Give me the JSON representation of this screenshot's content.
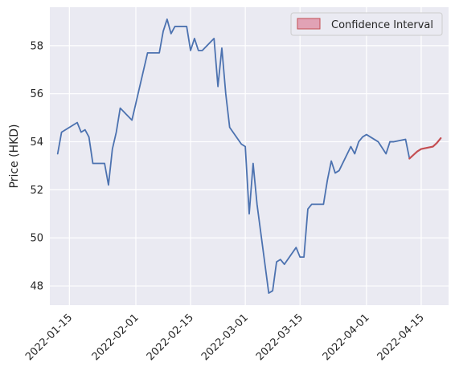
{
  "chart_data": {
    "type": "line",
    "title": "",
    "xlabel": "",
    "ylabel": "Price (HKD)",
    "x_tick_labels": [
      "2022-01-15",
      "2022-02-01",
      "2022-02-15",
      "2022-03-01",
      "2022-03-15",
      "2022-04-01",
      "2022-04-15"
    ],
    "y_tick_labels": [
      "48",
      "50",
      "52",
      "54",
      "56",
      "58"
    ],
    "y_ticks": [
      48,
      50,
      52,
      54,
      56,
      58
    ],
    "xlim": [
      "2022-01-10",
      "2022-04-22"
    ],
    "ylim": [
      47.2,
      59.6
    ],
    "grid": true,
    "legend": {
      "position": "top-right",
      "entries": [
        "Confidence Interval"
      ]
    },
    "colors": {
      "background": "#eaeaf2",
      "history": "#4c72b0",
      "forecast": "#c44e52",
      "interval_fill": "#dd8aa0",
      "interval_edge": "#c44e52",
      "grid": "#ffffff"
    },
    "series": [
      {
        "style": "history",
        "x": [
          "2022-01-12",
          "2022-01-13",
          "2022-01-14",
          "2022-01-17",
          "2022-01-18",
          "2022-01-19",
          "2022-01-20",
          "2022-01-21",
          "2022-01-24",
          "2022-01-25",
          "2022-01-26",
          "2022-01-27",
          "2022-01-28",
          "2022-01-31",
          "2022-02-04",
          "2022-02-07",
          "2022-02-08",
          "2022-02-09",
          "2022-02-10",
          "2022-02-11",
          "2022-02-14",
          "2022-02-15",
          "2022-02-16",
          "2022-02-17",
          "2022-02-18",
          "2022-02-21",
          "2022-02-22",
          "2022-02-23",
          "2022-02-24",
          "2022-02-25",
          "2022-02-28",
          "2022-03-01",
          "2022-03-02",
          "2022-03-03",
          "2022-03-04",
          "2022-03-07",
          "2022-03-08",
          "2022-03-09",
          "2022-03-10",
          "2022-03-11",
          "2022-03-14",
          "2022-03-15",
          "2022-03-16",
          "2022-03-17",
          "2022-03-18",
          "2022-03-21",
          "2022-03-22",
          "2022-03-23",
          "2022-03-24",
          "2022-03-25",
          "2022-03-28",
          "2022-03-29",
          "2022-03-30",
          "2022-03-31",
          "2022-04-01",
          "2022-04-04",
          "2022-04-06",
          "2022-04-07",
          "2022-04-08",
          "2022-04-11",
          "2022-04-12"
        ],
        "y": [
          53.5,
          54.4,
          54.5,
          54.8,
          54.4,
          54.5,
          54.2,
          53.1,
          53.1,
          52.2,
          53.7,
          54.4,
          55.4,
          54.9,
          57.7,
          57.7,
          58.6,
          59.1,
          58.5,
          58.8,
          58.8,
          57.8,
          58.3,
          57.8,
          57.8,
          58.3,
          56.3,
          57.9,
          56.0,
          54.6,
          53.9,
          53.8,
          51.0,
          53.1,
          51.4,
          47.7,
          47.8,
          49.0,
          49.1,
          48.9,
          49.6,
          49.2,
          49.2,
          51.2,
          51.4,
          51.4,
          52.4,
          53.2,
          52.7,
          52.8,
          53.8,
          53.5,
          54.0,
          54.2,
          54.3,
          54.0,
          53.5,
          54.0,
          54.0,
          54.1,
          53.3
        ]
      },
      {
        "style": "forecast",
        "x": [
          "2022-04-12",
          "2022-04-13",
          "2022-04-14",
          "2022-04-15",
          "2022-04-18",
          "2022-04-19",
          "2022-04-20"
        ],
        "y": [
          53.3,
          53.45,
          53.6,
          53.7,
          53.8,
          53.95,
          54.15
        ],
        "lower": [
          53.27,
          53.42,
          53.57,
          53.67,
          53.77,
          53.92,
          54.12
        ],
        "upper": [
          53.33,
          53.48,
          53.63,
          53.73,
          53.83,
          53.98,
          54.18
        ]
      }
    ]
  }
}
